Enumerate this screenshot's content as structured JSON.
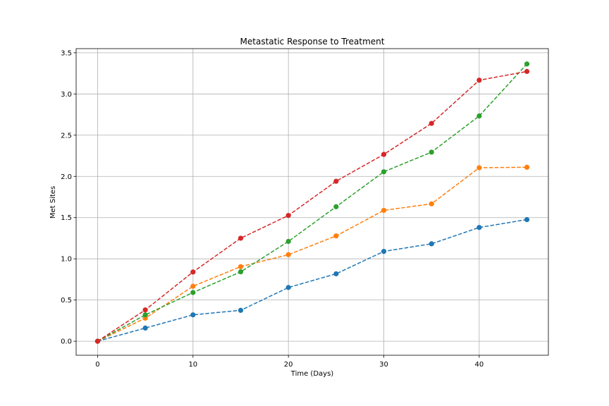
{
  "chart_data": {
    "type": "line",
    "title": "Metastatic Response to Treatment",
    "xlabel": "Time (Days)",
    "ylabel": "Met Sites",
    "xlim": [
      -2.25,
      47.25
    ],
    "ylim": [
      -0.17,
      3.55
    ],
    "xticks": [
      0,
      10,
      20,
      30,
      40
    ],
    "yticks": [
      0.0,
      0.5,
      1.0,
      1.5,
      2.0,
      2.5,
      3.0,
      3.5
    ],
    "xtick_labels": [
      "0",
      "10",
      "20",
      "30",
      "40"
    ],
    "ytick_labels": [
      "0.0",
      "0.5",
      "1.0",
      "1.5",
      "2.0",
      "2.5",
      "3.0",
      "3.5"
    ],
    "grid": true,
    "line_style": "dashed",
    "marker": "circle",
    "x": [
      0,
      5,
      10,
      15,
      20,
      25,
      30,
      35,
      40,
      45
    ],
    "series": [
      {
        "color": "#1f77b4",
        "values": [
          0.0,
          0.16,
          0.32,
          0.375,
          0.652,
          0.818,
          1.09,
          1.182,
          1.38,
          1.476
        ]
      },
      {
        "color": "#ff7f0e",
        "values": [
          0.0,
          0.28,
          0.667,
          0.905,
          1.05,
          1.278,
          1.588,
          1.667,
          2.105,
          2.111
        ]
      },
      {
        "color": "#2ca02c",
        "values": [
          0.0,
          0.32,
          0.591,
          0.842,
          1.211,
          1.632,
          2.056,
          2.294,
          2.733,
          3.364
        ]
      },
      {
        "color": "#d62728",
        "values": [
          0.0,
          0.38,
          0.84,
          1.25,
          1.526,
          1.941,
          2.267,
          2.643,
          3.167,
          3.273
        ]
      }
    ]
  }
}
